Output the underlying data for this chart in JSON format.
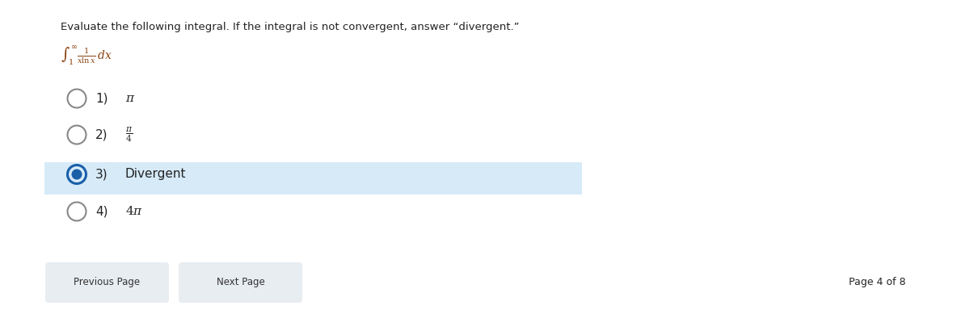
{
  "title_line1": "Evaluate the following integral. If the integral is not convergent, answer “divergent.”",
  "integral_text": "$\\int_1^{\\infty} \\frac{1}{x\\ln x}\\,dx$",
  "options": [
    {
      "num": "1)",
      "text": "$\\pi$",
      "selected": false
    },
    {
      "num": "2)",
      "text": "$\\frac{\\pi}{4}$",
      "selected": false
    },
    {
      "num": "3)",
      "text": "Divergent",
      "selected": true
    },
    {
      "num": "4)",
      "text": "$4\\pi$",
      "selected": false
    }
  ],
  "highlight_color": "#d6eaf8",
  "selected_ring_color": "#1a5fa8",
  "unselected_ring_color": "#888888",
  "button_color": "#e8edf2",
  "button_text_color": "#333333",
  "page_text": "Page 4 of 8",
  "btn1_text": "Previous Page",
  "btn2_text": "Next Page",
  "bg_color": "#ffffff",
  "text_color": "#222222"
}
